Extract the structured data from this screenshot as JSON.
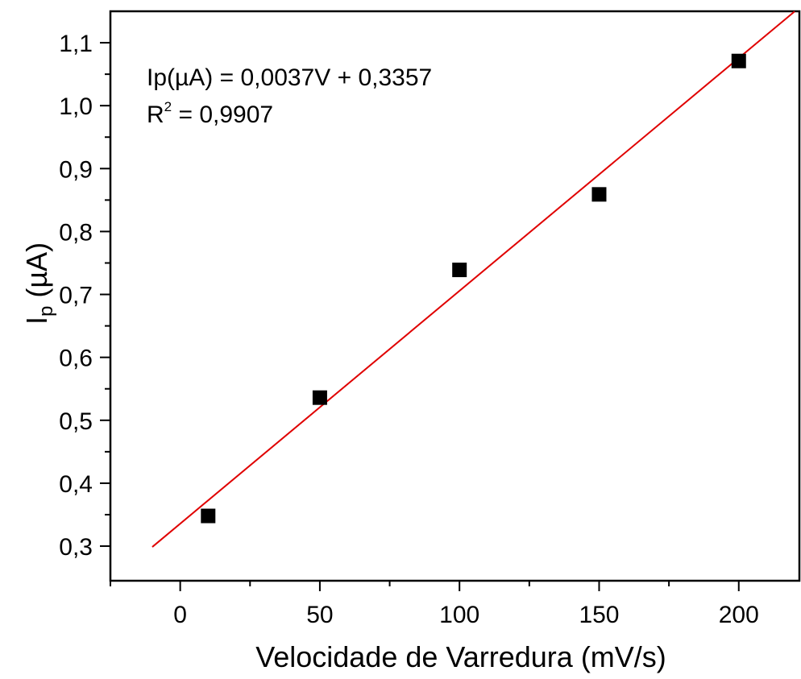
{
  "chart_data": {
    "type": "scatter",
    "title": "",
    "xlabel": "Velocidade de Varredura (mV/s)",
    "ylabel": {
      "main": "I",
      "sub": "p",
      "unit": " (µA)"
    },
    "xlim": [
      -25,
      222
    ],
    "ylim": [
      0.245,
      1.15
    ],
    "x_ticks": [
      0,
      50,
      100,
      150,
      200
    ],
    "x_tick_labels": [
      "0",
      "50",
      "100",
      "150",
      "200"
    ],
    "x_minor_ticks": [
      -25,
      25,
      75,
      125,
      175
    ],
    "y_ticks": [
      0.3,
      0.4,
      0.5,
      0.6,
      0.7,
      0.8,
      0.9,
      1.0,
      1.1
    ],
    "y_tick_labels": [
      "0,3",
      "0,4",
      "0,5",
      "0,6",
      "0,7",
      "0,8",
      "0,9",
      "1,0",
      "1,1"
    ],
    "y_minor_ticks": [
      0.35,
      0.45,
      0.55,
      0.65,
      0.75,
      0.85,
      0.95,
      1.05
    ],
    "grid": false,
    "series": [
      {
        "marker": "square",
        "color": "#000000",
        "points": [
          {
            "x": 10,
            "y": 0.348
          },
          {
            "x": 50,
            "y": 0.536
          },
          {
            "x": 100,
            "y": 0.739
          },
          {
            "x": 150,
            "y": 0.859
          },
          {
            "x": 200,
            "y": 1.071
          }
        ]
      }
    ],
    "fit_line": {
      "color": "#e00000",
      "slope": 0.0037,
      "intercept": 0.3357,
      "x_range": [
        -10,
        220
      ]
    },
    "annotations": {
      "equation": "Ip(µA) = 0,0037V + 0,3357",
      "r2_label": "R",
      "r2_exponent": "2",
      "r2_value": " = 0,9907"
    }
  }
}
